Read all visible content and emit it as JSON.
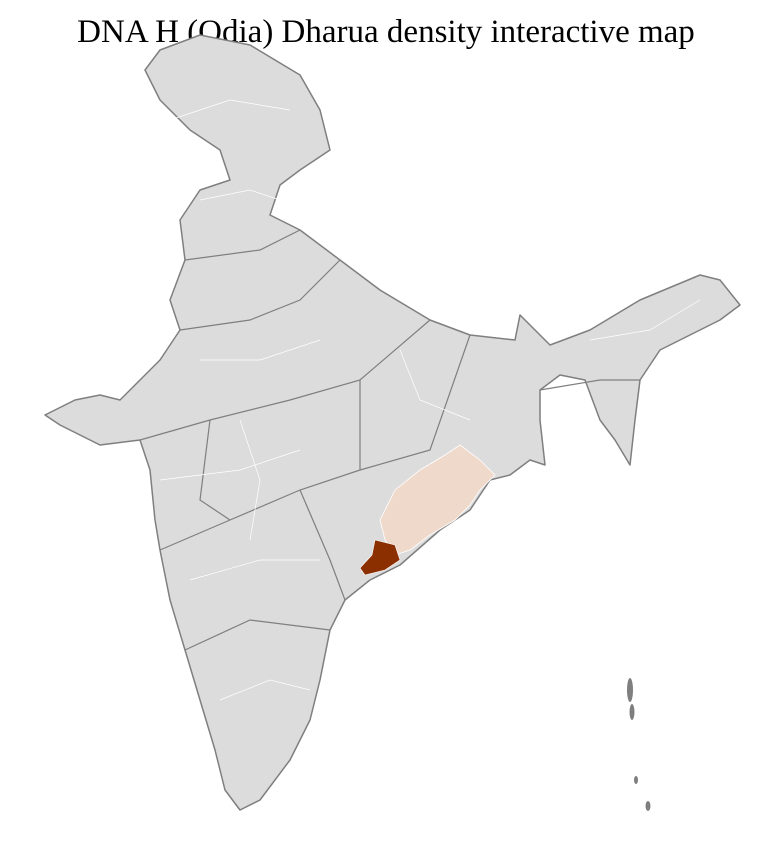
{
  "title": "DNA H (Odia) Dharua density interactive map",
  "colors": {
    "base": "#dcdcdc",
    "border": "#7f7f7f",
    "district_line": "#ffffff",
    "low_density": "#efd9cb",
    "high_density": "#8b2e00"
  },
  "regions": [
    {
      "name": "Odisha",
      "level": "low"
    },
    {
      "name": "Southern Odisha district",
      "level": "high"
    }
  ]
}
